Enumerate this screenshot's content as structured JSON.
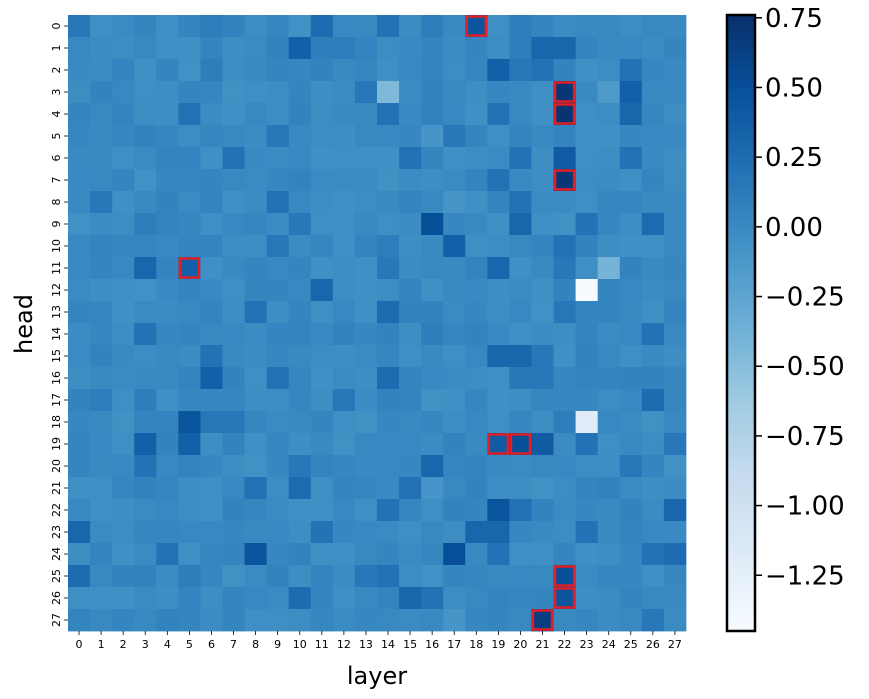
{
  "chart_data": {
    "type": "heatmap",
    "xlabel": "layer",
    "ylabel": "head",
    "x_ticks": [
      "0",
      "1",
      "2",
      "3",
      "4",
      "5",
      "6",
      "7",
      "8",
      "9",
      "10",
      "11",
      "12",
      "13",
      "14",
      "15",
      "16",
      "17",
      "18",
      "19",
      "20",
      "21",
      "22",
      "23",
      "24",
      "25",
      "26",
      "27"
    ],
    "y_ticks": [
      "0",
      "1",
      "2",
      "3",
      "4",
      "5",
      "6",
      "7",
      "8",
      "9",
      "10",
      "11",
      "12",
      "13",
      "14",
      "15",
      "16",
      "17",
      "18",
      "19",
      "20",
      "21",
      "22",
      "23",
      "24",
      "25",
      "26",
      "27"
    ],
    "colormap": "Blues",
    "vmin": -1.45,
    "vmax": 0.76,
    "colorbar_ticks": [
      "0.75",
      "0.50",
      "0.25",
      "0.00",
      "−0.25",
      "−0.50",
      "−0.75",
      "−1.00",
      "−1.25"
    ],
    "colorbar_tick_values": [
      0.75,
      0.5,
      0.25,
      0.0,
      -0.25,
      -0.5,
      -0.75,
      -1.0,
      -1.25
    ],
    "default_value": 0.0,
    "cells": [
      [
        0,
        0,
        0.15
      ],
      [
        0,
        6,
        0.1
      ],
      [
        0,
        11,
        0.25
      ],
      [
        0,
        14,
        0.2
      ],
      [
        0,
        16,
        0.1
      ],
      [
        0,
        18,
        0.45
      ],
      [
        0,
        20,
        0.1
      ],
      [
        0,
        21,
        0.05
      ],
      [
        1,
        10,
        0.35
      ],
      [
        1,
        11,
        0.1
      ],
      [
        1,
        12,
        0.1
      ],
      [
        1,
        21,
        0.3
      ],
      [
        1,
        22,
        0.3
      ],
      [
        1,
        20,
        0.1
      ],
      [
        2,
        6,
        0.1
      ],
      [
        2,
        19,
        0.35
      ],
      [
        2,
        20,
        0.15
      ],
      [
        2,
        21,
        0.2
      ],
      [
        2,
        25,
        0.2
      ],
      [
        3,
        13,
        0.15
      ],
      [
        3,
        14,
        -0.45
      ],
      [
        3,
        22,
        0.7
      ],
      [
        3,
        25,
        0.35
      ],
      [
        3,
        24,
        -0.15
      ],
      [
        4,
        5,
        0.2
      ],
      [
        4,
        14,
        0.2
      ],
      [
        4,
        19,
        0.2
      ],
      [
        4,
        22,
        0.72
      ],
      [
        4,
        25,
        0.3
      ],
      [
        5,
        9,
        0.15
      ],
      [
        5,
        17,
        0.15
      ],
      [
        5,
        16,
        -0.1
      ],
      [
        6,
        5,
        0.05
      ],
      [
        6,
        7,
        0.2
      ],
      [
        6,
        15,
        0.2
      ],
      [
        6,
        20,
        0.2
      ],
      [
        6,
        22,
        0.4
      ],
      [
        6,
        25,
        0.2
      ],
      [
        7,
        19,
        0.2
      ],
      [
        7,
        22,
        0.7
      ],
      [
        7,
        18,
        0.05
      ],
      [
        8,
        1,
        0.15
      ],
      [
        8,
        9,
        0.2
      ],
      [
        8,
        20,
        0.2
      ],
      [
        8,
        17,
        -0.1
      ],
      [
        9,
        3,
        0.1
      ],
      [
        9,
        10,
        0.15
      ],
      [
        9,
        16,
        0.5
      ],
      [
        9,
        20,
        0.3
      ],
      [
        9,
        23,
        0.2
      ],
      [
        9,
        26,
        0.25
      ],
      [
        10,
        9,
        0.15
      ],
      [
        10,
        17,
        0.35
      ],
      [
        10,
        22,
        0.2
      ],
      [
        10,
        14,
        0.1
      ],
      [
        11,
        3,
        0.3
      ],
      [
        11,
        5,
        0.35
      ],
      [
        11,
        14,
        0.15
      ],
      [
        11,
        19,
        0.3
      ],
      [
        11,
        22,
        0.15
      ],
      [
        11,
        24,
        -0.4
      ],
      [
        12,
        11,
        0.3
      ],
      [
        12,
        16,
        -0.05
      ],
      [
        12,
        23,
        -1.45
      ],
      [
        13,
        8,
        0.2
      ],
      [
        13,
        14,
        0.25
      ],
      [
        13,
        22,
        0.15
      ],
      [
        14,
        3,
        0.2
      ],
      [
        14,
        26,
        0.2
      ],
      [
        14,
        16,
        0.1
      ],
      [
        15,
        6,
        0.2
      ],
      [
        15,
        19,
        0.3
      ],
      [
        15,
        20,
        0.3
      ],
      [
        15,
        21,
        0.15
      ],
      [
        16,
        6,
        0.35
      ],
      [
        16,
        9,
        0.2
      ],
      [
        16,
        14,
        0.25
      ],
      [
        16,
        20,
        0.15
      ],
      [
        16,
        21,
        0.15
      ],
      [
        17,
        3,
        0.1
      ],
      [
        17,
        12,
        0.15
      ],
      [
        17,
        26,
        0.25
      ],
      [
        17,
        1,
        0.1
      ],
      [
        18,
        5,
        0.45
      ],
      [
        18,
        6,
        0.15
      ],
      [
        18,
        7,
        0.15
      ],
      [
        18,
        22,
        0.1
      ],
      [
        18,
        23,
        -1.2
      ],
      [
        19,
        3,
        0.35
      ],
      [
        19,
        5,
        0.35
      ],
      [
        19,
        19,
        0.4
      ],
      [
        19,
        20,
        0.5
      ],
      [
        19,
        21,
        0.4
      ],
      [
        19,
        23,
        0.2
      ],
      [
        19,
        27,
        0.15
      ],
      [
        20,
        3,
        0.2
      ],
      [
        20,
        10,
        0.15
      ],
      [
        20,
        16,
        0.3
      ],
      [
        20,
        25,
        0.15
      ],
      [
        21,
        8,
        0.2
      ],
      [
        21,
        10,
        0.25
      ],
      [
        21,
        15,
        0.2
      ],
      [
        21,
        16,
        -0.1
      ],
      [
        22,
        14,
        0.2
      ],
      [
        22,
        19,
        0.45
      ],
      [
        22,
        20,
        0.2
      ],
      [
        22,
        27,
        0.3
      ],
      [
        23,
        0,
        0.3
      ],
      [
        23,
        11,
        0.2
      ],
      [
        23,
        18,
        0.3
      ],
      [
        23,
        19,
        0.3
      ],
      [
        23,
        23,
        0.2
      ],
      [
        24,
        4,
        0.2
      ],
      [
        24,
        8,
        0.45
      ],
      [
        24,
        17,
        0.5
      ],
      [
        24,
        19,
        0.2
      ],
      [
        24,
        26,
        0.2
      ],
      [
        24,
        27,
        0.25
      ],
      [
        25,
        0,
        0.25
      ],
      [
        25,
        5,
        0.1
      ],
      [
        25,
        13,
        0.15
      ],
      [
        25,
        14,
        0.2
      ],
      [
        25,
        22,
        0.5
      ],
      [
        26,
        10,
        0.25
      ],
      [
        26,
        15,
        0.3
      ],
      [
        26,
        16,
        0.2
      ],
      [
        26,
        22,
        0.45
      ],
      [
        27,
        21,
        0.65
      ],
      [
        27,
        26,
        0.15
      ],
      [
        27,
        17,
        -0.1
      ]
    ],
    "highlighted": [
      [
        0,
        18
      ],
      [
        3,
        22
      ],
      [
        4,
        22
      ],
      [
        7,
        22
      ],
      [
        11,
        5
      ],
      [
        19,
        19
      ],
      [
        19,
        20
      ],
      [
        25,
        22
      ],
      [
        26,
        22
      ],
      [
        27,
        21
      ]
    ],
    "highlight_color": "#e01f26"
  }
}
